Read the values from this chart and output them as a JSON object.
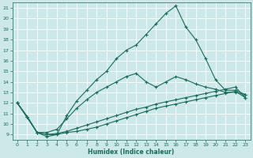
{
  "xlabel": "Humidex (Indice chaleur)",
  "background_color": "#cce8e8",
  "line_color": "#1a6b5a",
  "grid_color": "#aad4d4",
  "xlim": [
    -0.5,
    23.5
  ],
  "ylim": [
    8.5,
    21.5
  ],
  "xticks": [
    0,
    1,
    2,
    3,
    4,
    5,
    6,
    7,
    8,
    9,
    10,
    11,
    12,
    13,
    14,
    15,
    16,
    17,
    18,
    19,
    20,
    21,
    22,
    23
  ],
  "yticks": [
    9,
    10,
    11,
    12,
    13,
    14,
    15,
    16,
    17,
    18,
    19,
    20,
    21
  ],
  "lines": [
    {
      "x": [
        0,
        1,
        2,
        3,
        4,
        5,
        6,
        7,
        8,
        9,
        10,
        11,
        12,
        13,
        14,
        15,
        16,
        17,
        18,
        19,
        20,
        21,
        22,
        23
      ],
      "y": [
        12.0,
        10.7,
        9.2,
        9.0,
        9.1,
        9.3,
        9.6,
        9.9,
        10.2,
        10.5,
        10.8,
        11.1,
        11.4,
        11.6,
        11.9,
        12.1,
        12.3,
        12.5,
        12.7,
        12.9,
        13.1,
        13.3,
        13.5,
        12.5
      ]
    },
    {
      "x": [
        0,
        2,
        3,
        4,
        5,
        6,
        7,
        8,
        9,
        10,
        11,
        12,
        13,
        14,
        15,
        16,
        17,
        18,
        19,
        20,
        21,
        22,
        23
      ],
      "y": [
        12.0,
        9.2,
        9.2,
        9.5,
        10.5,
        11.5,
        12.3,
        13.0,
        13.5,
        14.0,
        14.5,
        14.8,
        14.0,
        13.5,
        14.0,
        14.5,
        14.2,
        13.8,
        13.5,
        13.3,
        13.0,
        13.0,
        12.8
      ]
    },
    {
      "x": [
        0,
        1,
        2,
        3,
        4,
        5,
        6,
        7,
        8,
        9,
        10,
        11,
        12,
        13,
        14,
        15,
        16,
        17,
        18,
        19,
        20,
        21,
        22,
        23
      ],
      "y": [
        12.0,
        10.7,
        9.2,
        9.0,
        9.0,
        9.2,
        9.3,
        9.5,
        9.7,
        10.0,
        10.3,
        10.6,
        10.9,
        11.2,
        11.5,
        11.7,
        11.9,
        12.1,
        12.3,
        12.5,
        12.7,
        12.9,
        13.1,
        12.5
      ]
    },
    {
      "x": [
        0,
        1,
        2,
        3,
        4,
        5,
        6,
        7,
        8,
        9,
        10,
        11,
        12,
        13,
        14,
        15,
        16,
        17,
        18,
        19,
        20,
        21,
        22,
        23
      ],
      "y": [
        12.0,
        10.7,
        9.2,
        8.8,
        9.0,
        10.8,
        12.2,
        13.2,
        14.2,
        15.0,
        16.2,
        17.0,
        17.5,
        18.5,
        19.5,
        20.5,
        21.2,
        19.2,
        18.0,
        16.2,
        14.2,
        13.2,
        13.2,
        12.8
      ]
    }
  ]
}
